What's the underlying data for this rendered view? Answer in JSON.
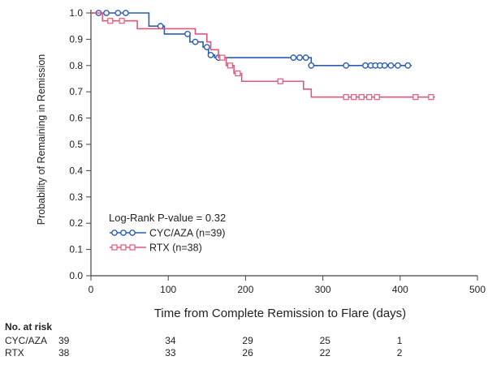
{
  "chart_data": {
    "type": "line",
    "subtype": "kaplan-meier",
    "title": "",
    "xlabel": "Time from Complete Remission to Flare (days)",
    "ylabel": "Probability of Remaining in Remission",
    "xlim": [
      0,
      500
    ],
    "ylim": [
      0.0,
      1.0
    ],
    "x_ticks": [
      "0",
      "100",
      "200",
      "300",
      "400",
      "500"
    ],
    "y_ticks": [
      "0.0",
      "0.1",
      "0.2",
      "0.3",
      "0.4",
      "0.5",
      "0.6",
      "0.7",
      "0.8",
      "0.9",
      "1.0"
    ],
    "grid": false,
    "legend_position": "bottom-left",
    "annotation": "Log-Rank P-value = 0.32",
    "series": [
      {
        "name": "CYC/AZA (n=39)",
        "color": "#2a5db0",
        "marker": "circle",
        "x": [
          0,
          75,
          95,
          128,
          145,
          152,
          160,
          285,
          300
        ],
        "y": [
          1.0,
          0.95,
          0.92,
          0.89,
          0.87,
          0.84,
          0.83,
          0.8,
          0.8
        ],
        "end": 415,
        "censored": [
          [
            10,
            1.0
          ],
          [
            20,
            1.0
          ],
          [
            35,
            1.0
          ],
          [
            45,
            1.0
          ],
          [
            90,
            0.95
          ],
          [
            125,
            0.92
          ],
          [
            135,
            0.89
          ],
          [
            150,
            0.87
          ],
          [
            155,
            0.84
          ],
          [
            165,
            0.83
          ],
          [
            262,
            0.83
          ],
          [
            270,
            0.83
          ],
          [
            278,
            0.83
          ],
          [
            285,
            0.8
          ],
          [
            330,
            0.8
          ],
          [
            355,
            0.8
          ],
          [
            362,
            0.8
          ],
          [
            368,
            0.8
          ],
          [
            374,
            0.8
          ],
          [
            380,
            0.8
          ],
          [
            388,
            0.8
          ],
          [
            397,
            0.8
          ],
          [
            410,
            0.8
          ]
        ]
      },
      {
        "name": "RTX (n=38)",
        "color": "#e05878",
        "marker": "square",
        "x": [
          0,
          15,
          60,
          135,
          150,
          155,
          165,
          175,
          185,
          195,
          205,
          275,
          285
        ],
        "y": [
          1.0,
          0.97,
          0.94,
          0.92,
          0.89,
          0.86,
          0.83,
          0.8,
          0.77,
          0.74,
          0.74,
          0.71,
          0.68
        ],
        "end": 445,
        "censored": [
          [
            25,
            0.97
          ],
          [
            40,
            0.97
          ],
          [
            170,
            0.83
          ],
          [
            180,
            0.8
          ],
          [
            190,
            0.77
          ],
          [
            245,
            0.74
          ],
          [
            330,
            0.68
          ],
          [
            340,
            0.68
          ],
          [
            350,
            0.68
          ],
          [
            360,
            0.68
          ],
          [
            370,
            0.68
          ],
          [
            420,
            0.68
          ],
          [
            440,
            0.68
          ]
        ]
      }
    ],
    "risk_table": {
      "title": "No. at risk",
      "at_times": [
        0,
        100,
        200,
        300,
        400
      ],
      "rows": [
        {
          "label": "CYC/AZA",
          "values": [
            "39",
            "34",
            "29",
            "25",
            "1"
          ]
        },
        {
          "label": "RTX",
          "values": [
            "38",
            "33",
            "26",
            "22",
            "2"
          ]
        }
      ]
    }
  }
}
